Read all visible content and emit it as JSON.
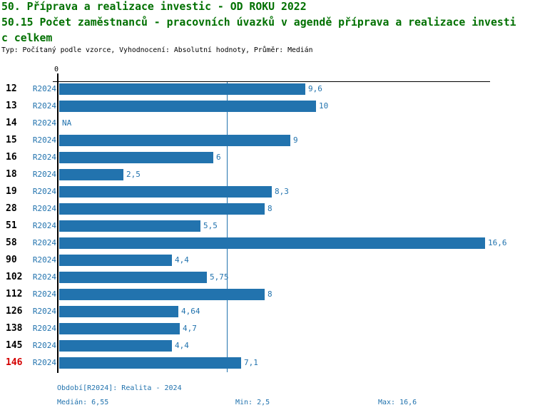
{
  "header": {
    "title_line1": "50. Příprava a realizace investic - OD ROKU 2022",
    "title_line2": "50.15 Počet zaměstnanců - pracovních úvazků v agendě příprava a realizace investi",
    "title_line3": "c celkem",
    "meta": "Typ: Počítaný podle vzorce, Vyhodnocení: Absolutní hodnoty, Průměr: Medián"
  },
  "chart_data": {
    "type": "bar",
    "orientation": "horizontal",
    "title": "50.15 Počet zaměstnanců - pracovních úvazků v agendě příprava a realizace investic celkem",
    "series_label": "R2024",
    "categories": [
      "12",
      "13",
      "14",
      "15",
      "16",
      "18",
      "19",
      "28",
      "51",
      "58",
      "90",
      "102",
      "112",
      "126",
      "138",
      "145",
      "146"
    ],
    "values": [
      9.6,
      10,
      null,
      9,
      6,
      2.5,
      8.3,
      8,
      5.5,
      16.6,
      4.4,
      5.75,
      8,
      4.64,
      4.7,
      4.4,
      7.1
    ],
    "value_labels": [
      "9,6",
      "10",
      "NA",
      "9",
      "6",
      "2,5",
      "8,3",
      "8",
      "5,5",
      "16,6",
      "4,4",
      "5,75",
      "8",
      "4,64",
      "4,7",
      "4,4",
      "7,1"
    ],
    "highlighted_category": "146",
    "axis_origin_label": "0",
    "median_value": 6.55,
    "xlim": [
      0,
      16.8
    ],
    "grid": false,
    "legend_position": "none",
    "colors": {
      "bar": "#2273ae",
      "blue_text": "#2273ae",
      "median_line": "#2273ae",
      "category_label": "#000000",
      "highlighted_label": "#d40000",
      "title_green": "#007000"
    }
  },
  "footer": {
    "period": "Období[R2024]: Realita - 2024",
    "median": "Medián: 6,55",
    "min": "Min: 2,5",
    "max": "Max: 16,6"
  }
}
